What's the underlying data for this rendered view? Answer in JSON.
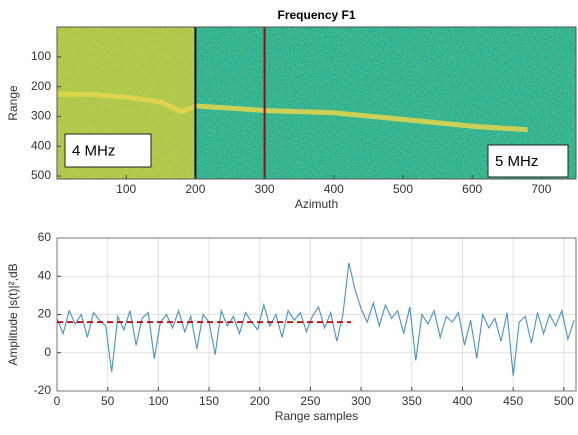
{
  "chart_data": [
    {
      "type": "heatmap",
      "title": "Frequency F1",
      "xlabel": "Azimuth",
      "ylabel": "Range",
      "xlim": [
        0,
        750
      ],
      "ylim": [
        510,
        0
      ],
      "xticks": [
        100,
        200,
        300,
        400,
        500,
        600,
        700
      ],
      "yticks": [
        100,
        200,
        300,
        400,
        500
      ],
      "regions": [
        {
          "x": [
            0,
            200
          ],
          "color": "#a8c444"
        },
        {
          "x": [
            200,
            750
          ],
          "color": "#20ad8f"
        }
      ],
      "surface": {
        "color": "#e6d64c",
        "x": [
          0,
          50,
          100,
          150,
          180,
          200,
          250,
          300,
          400,
          500,
          600,
          680
        ],
        "values": [
          225,
          226,
          236,
          252,
          285,
          265,
          272,
          280,
          288,
          310,
          333,
          345
        ]
      },
      "vlines": [
        {
          "value": 200,
          "color": "#111111"
        },
        {
          "value": 300,
          "color": "#8b1010"
        }
      ],
      "annotations": [
        "4 MHz",
        "5 MHz"
      ]
    },
    {
      "type": "line",
      "xlabel": "Range samples",
      "ylabel": "Amplitude |s(t)|²,dB",
      "xlim": [
        0,
        512
      ],
      "ylim": [
        -20,
        60
      ],
      "xticks": [
        0,
        50,
        100,
        150,
        200,
        250,
        300,
        350,
        400,
        450,
        500
      ],
      "yticks": [
        -20,
        0,
        20,
        40,
        60
      ],
      "grid": true,
      "series": [
        {
          "color": "#4a90c8",
          "x": [
            0,
            6,
            12,
            18,
            24,
            30,
            36,
            42,
            48,
            54,
            60,
            66,
            72,
            78,
            84,
            90,
            96,
            102,
            108,
            114,
            120,
            126,
            132,
            138,
            144,
            150,
            156,
            162,
            168,
            174,
            180,
            186,
            192,
            198,
            204,
            210,
            216,
            222,
            228,
            234,
            240,
            246,
            252,
            258,
            264,
            270,
            276,
            282,
            288,
            294,
            300,
            306,
            312,
            318,
            324,
            330,
            336,
            342,
            348,
            354,
            360,
            366,
            372,
            378,
            384,
            390,
            396,
            402,
            408,
            414,
            420,
            426,
            432,
            438,
            444,
            450,
            456,
            462,
            468,
            474,
            480,
            486,
            492,
            498,
            504,
            510
          ],
          "values": [
            18,
            10,
            22,
            15,
            20,
            8,
            21,
            17,
            14,
            -10,
            19,
            12,
            22,
            4,
            18,
            21,
            -3,
            16,
            20,
            13,
            22,
            11,
            19,
            2,
            20,
            16,
            -1,
            22,
            14,
            19,
            10,
            21,
            16,
            12,
            25,
            14,
            20,
            8,
            22,
            17,
            21,
            11,
            19,
            24,
            13,
            21,
            6,
            20,
            47,
            33,
            23,
            16,
            26,
            14,
            25,
            18,
            22,
            10,
            24,
            -4,
            20,
            15,
            22,
            8,
            19,
            16,
            21,
            4,
            17,
            -3,
            20,
            13,
            18,
            6,
            21,
            -12,
            16,
            19,
            5,
            21,
            10,
            20,
            14,
            22,
            7,
            17
          ]
        },
        {
          "color": "#c00000",
          "dash": true,
          "x": [
            0,
            290
          ],
          "values": [
            16,
            16
          ]
        }
      ]
    }
  ]
}
